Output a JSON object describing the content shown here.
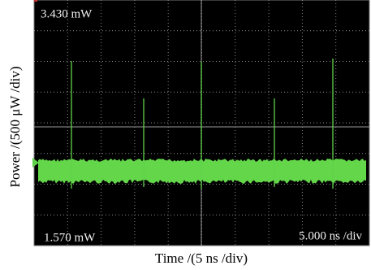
{
  "chart_data": {
    "type": "scope",
    "xlabel": "Time /(5 ns /div)",
    "ylabel": "Power /(500 μW /div)",
    "readouts": {
      "top": "3.430 mW",
      "bottom": "1.570 mW",
      "timebase": "5.000 ns /div"
    }
  }
}
